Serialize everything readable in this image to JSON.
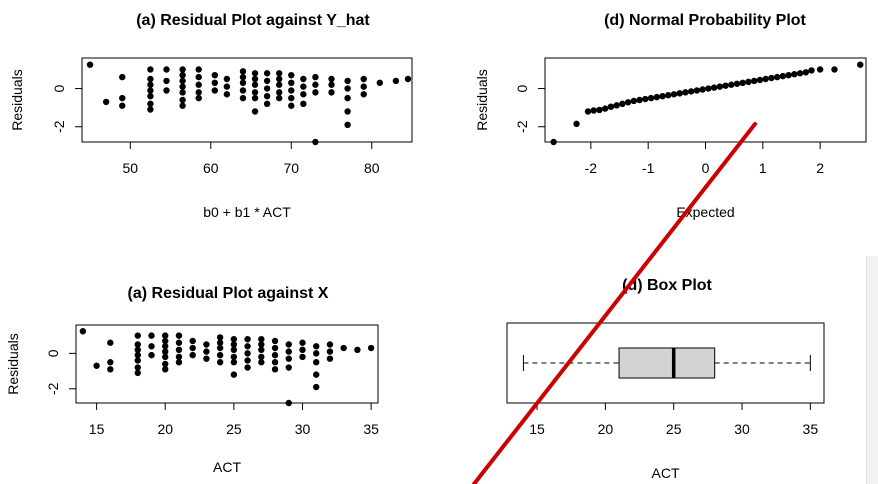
{
  "overlay": {
    "stroke_color": "#cc0000"
  },
  "chart_data": [
    {
      "id": "res_yhat",
      "type": "scatter",
      "title": "(a) Residual Plot against Y_hat",
      "xlabel": "b0 + b1 * ACT",
      "ylabel": "Residuals",
      "xlim": [
        44,
        85
      ],
      "ylim": [
        -2.8,
        1.6
      ],
      "xticks": [
        50,
        60,
        70,
        80
      ],
      "yticks": [
        -2,
        0
      ],
      "xtick_labels": [
        "50",
        "60",
        "70",
        "80"
      ],
      "ytick_labels": [
        "-2",
        "0"
      ],
      "points": [
        [
          45,
          1.25
        ],
        [
          47,
          -0.7
        ],
        [
          49,
          0.6
        ],
        [
          49,
          -0.5
        ],
        [
          49,
          -0.9
        ],
        [
          52.5,
          1.0
        ],
        [
          52.5,
          0.5
        ],
        [
          52.5,
          0.2
        ],
        [
          52.5,
          -0.1
        ],
        [
          52.5,
          -0.4
        ],
        [
          52.5,
          -0.8
        ],
        [
          52.5,
          -1.1
        ],
        [
          54.5,
          1.0
        ],
        [
          54.5,
          0.4
        ],
        [
          54.5,
          -0.1
        ],
        [
          56.5,
          1.0
        ],
        [
          56.5,
          0.7
        ],
        [
          56.5,
          0.4
        ],
        [
          56.5,
          0.1
        ],
        [
          56.5,
          -0.2
        ],
        [
          56.5,
          -0.6
        ],
        [
          56.5,
          -0.9
        ],
        [
          58.5,
          1.0
        ],
        [
          58.5,
          0.6
        ],
        [
          58.5,
          0.2
        ],
        [
          58.5,
          -0.2
        ],
        [
          58.5,
          -0.5
        ],
        [
          60.5,
          0.7
        ],
        [
          60.5,
          0.3
        ],
        [
          60.5,
          -0.1
        ],
        [
          62,
          0.5
        ],
        [
          62,
          0.1
        ],
        [
          62,
          -0.3
        ],
        [
          64,
          0.9
        ],
        [
          64,
          0.6
        ],
        [
          64,
          0.3
        ],
        [
          64,
          -0.1
        ],
        [
          64,
          -0.5
        ],
        [
          65.5,
          0.8
        ],
        [
          65.5,
          0.5
        ],
        [
          65.5,
          0.2
        ],
        [
          65.5,
          -0.2
        ],
        [
          65.5,
          -0.5
        ],
        [
          65.5,
          -1.2
        ],
        [
          67,
          0.8
        ],
        [
          67,
          0.4
        ],
        [
          67,
          0.0
        ],
        [
          67,
          -0.4
        ],
        [
          67,
          -0.8
        ],
        [
          68.5,
          0.8
        ],
        [
          68.5,
          0.5
        ],
        [
          68.5,
          0.2
        ],
        [
          68.5,
          -0.2
        ],
        [
          68.5,
          -0.5
        ],
        [
          70,
          0.7
        ],
        [
          70,
          0.3
        ],
        [
          70,
          -0.1
        ],
        [
          70,
          -0.5
        ],
        [
          70,
          -0.9
        ],
        [
          71.5,
          0.5
        ],
        [
          71.5,
          0.1
        ],
        [
          71.5,
          -0.3
        ],
        [
          71.5,
          -0.8
        ],
        [
          73,
          0.6
        ],
        [
          73,
          0.2
        ],
        [
          73,
          -0.2
        ],
        [
          73,
          -2.8
        ],
        [
          75,
          0.5
        ],
        [
          75,
          0.2
        ],
        [
          75,
          -0.2
        ],
        [
          77,
          0.4
        ],
        [
          77,
          0.0
        ],
        [
          77,
          -0.5
        ],
        [
          77,
          -1.2
        ],
        [
          77,
          -1.9
        ],
        [
          79,
          0.5
        ],
        [
          79,
          0.1
        ],
        [
          79,
          -0.3
        ],
        [
          81,
          0.3
        ],
        [
          83,
          0.4
        ],
        [
          84.5,
          0.5
        ]
      ]
    },
    {
      "id": "normprob",
      "type": "scatter",
      "title": "(d) Normal Probability Plot",
      "xlabel": "Expected",
      "ylabel": "Residuals",
      "xlim": [
        -2.8,
        2.8
      ],
      "ylim": [
        -2.8,
        1.6
      ],
      "xticks": [
        -2,
        -1,
        0,
        1,
        2
      ],
      "yticks": [
        -2,
        0
      ],
      "xtick_labels": [
        "-2",
        "-1",
        "0",
        "1",
        "2"
      ],
      "ytick_labels": [
        "-2",
        "0"
      ],
      "points": [
        [
          -2.65,
          -2.8
        ],
        [
          -2.25,
          -1.85
        ],
        [
          -2.05,
          -1.2
        ],
        [
          -1.95,
          -1.15
        ],
        [
          -1.85,
          -1.12
        ],
        [
          -1.75,
          -1.05
        ],
        [
          -1.65,
          -0.95
        ],
        [
          -1.55,
          -0.88
        ],
        [
          -1.45,
          -0.8
        ],
        [
          -1.35,
          -0.72
        ],
        [
          -1.25,
          -0.65
        ],
        [
          -1.15,
          -0.6
        ],
        [
          -1.05,
          -0.55
        ],
        [
          -0.95,
          -0.5
        ],
        [
          -0.85,
          -0.45
        ],
        [
          -0.75,
          -0.4
        ],
        [
          -0.65,
          -0.35
        ],
        [
          -0.55,
          -0.3
        ],
        [
          -0.45,
          -0.25
        ],
        [
          -0.35,
          -0.2
        ],
        [
          -0.25,
          -0.15
        ],
        [
          -0.15,
          -0.1
        ],
        [
          -0.05,
          -0.05
        ],
        [
          0.05,
          0.0
        ],
        [
          0.15,
          0.05
        ],
        [
          0.25,
          0.1
        ],
        [
          0.35,
          0.15
        ],
        [
          0.45,
          0.2
        ],
        [
          0.55,
          0.25
        ],
        [
          0.65,
          0.3
        ],
        [
          0.75,
          0.35
        ],
        [
          0.85,
          0.4
        ],
        [
          0.95,
          0.45
        ],
        [
          1.05,
          0.5
        ],
        [
          1.15,
          0.55
        ],
        [
          1.25,
          0.6
        ],
        [
          1.35,
          0.65
        ],
        [
          1.45,
          0.7
        ],
        [
          1.55,
          0.75
        ],
        [
          1.65,
          0.8
        ],
        [
          1.75,
          0.85
        ],
        [
          1.85,
          0.95
        ],
        [
          2.0,
          1.0
        ],
        [
          2.25,
          1.0
        ],
        [
          2.7,
          1.25
        ]
      ]
    },
    {
      "id": "res_x",
      "type": "scatter",
      "title": "(a) Residual Plot against X",
      "xlabel": "ACT",
      "ylabel": "Residuals",
      "xlim": [
        13.5,
        35.5
      ],
      "ylim": [
        -2.8,
        1.6
      ],
      "xticks": [
        15,
        20,
        25,
        30,
        35
      ],
      "yticks": [
        -2,
        0
      ],
      "xtick_labels": [
        "15",
        "20",
        "25",
        "30",
        "35"
      ],
      "ytick_labels": [
        "-2",
        "0"
      ],
      "points": [
        [
          14,
          1.25
        ],
        [
          15,
          -0.7
        ],
        [
          16,
          0.6
        ],
        [
          16,
          -0.5
        ],
        [
          16,
          -0.9
        ],
        [
          18,
          1.0
        ],
        [
          18,
          0.5
        ],
        [
          18,
          0.2
        ],
        [
          18,
          -0.1
        ],
        [
          18,
          -0.4
        ],
        [
          18,
          -0.8
        ],
        [
          18,
          -1.1
        ],
        [
          19,
          1.0
        ],
        [
          19,
          0.4
        ],
        [
          19,
          -0.1
        ],
        [
          20,
          1.0
        ],
        [
          20,
          0.7
        ],
        [
          20,
          0.4
        ],
        [
          20,
          0.1
        ],
        [
          20,
          -0.2
        ],
        [
          20,
          -0.6
        ],
        [
          20,
          -0.9
        ],
        [
          21,
          1.0
        ],
        [
          21,
          0.6
        ],
        [
          21,
          0.2
        ],
        [
          21,
          -0.2
        ],
        [
          21,
          -0.5
        ],
        [
          22,
          0.7
        ],
        [
          22,
          0.3
        ],
        [
          22,
          -0.1
        ],
        [
          23,
          0.5
        ],
        [
          23,
          0.1
        ],
        [
          23,
          -0.3
        ],
        [
          24,
          0.9
        ],
        [
          24,
          0.6
        ],
        [
          24,
          0.3
        ],
        [
          24,
          -0.1
        ],
        [
          24,
          -0.5
        ],
        [
          25,
          0.8
        ],
        [
          25,
          0.5
        ],
        [
          25,
          0.2
        ],
        [
          25,
          -0.2
        ],
        [
          25,
          -0.5
        ],
        [
          25,
          -1.2
        ],
        [
          26,
          0.8
        ],
        [
          26,
          0.4
        ],
        [
          26,
          0.0
        ],
        [
          26,
          -0.4
        ],
        [
          26,
          -0.8
        ],
        [
          27,
          0.8
        ],
        [
          27,
          0.5
        ],
        [
          27,
          0.2
        ],
        [
          27,
          -0.2
        ],
        [
          27,
          -0.5
        ],
        [
          28,
          0.7
        ],
        [
          28,
          0.3
        ],
        [
          28,
          -0.1
        ],
        [
          28,
          -0.5
        ],
        [
          28,
          -0.9
        ],
        [
          29,
          0.5
        ],
        [
          29,
          0.1
        ],
        [
          29,
          -0.3
        ],
        [
          29,
          -0.8
        ],
        [
          29,
          -2.8
        ],
        [
          30,
          0.6
        ],
        [
          30,
          0.2
        ],
        [
          30,
          -0.2
        ],
        [
          31,
          0.4
        ],
        [
          31,
          0.0
        ],
        [
          31,
          -0.5
        ],
        [
          31,
          -1.2
        ],
        [
          31,
          -1.9
        ],
        [
          32,
          0.5
        ],
        [
          32,
          0.1
        ],
        [
          32,
          -0.3
        ],
        [
          33,
          0.3
        ],
        [
          34,
          0.2
        ],
        [
          35,
          0.3
        ]
      ]
    },
    {
      "id": "boxplot",
      "type": "box",
      "title": "(d) Box Plot",
      "xlabel": "ACT",
      "xlim": [
        12.8,
        36.0
      ],
      "xticks": [
        15,
        20,
        25,
        30,
        35
      ],
      "xtick_labels": [
        "15",
        "20",
        "25",
        "30",
        "35"
      ],
      "stats": {
        "min": 14,
        "q1": 21,
        "median": 25,
        "q3": 28,
        "max": 35
      },
      "box_fill": "#d3d3d3"
    }
  ]
}
